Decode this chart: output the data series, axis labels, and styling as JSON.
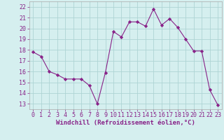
{
  "x": [
    0,
    1,
    2,
    3,
    4,
    5,
    6,
    7,
    8,
    9,
    10,
    11,
    12,
    13,
    14,
    15,
    16,
    17,
    18,
    19,
    20,
    21,
    22,
    23
  ],
  "y": [
    17.8,
    17.4,
    16.0,
    15.7,
    15.3,
    15.3,
    15.3,
    14.7,
    13.0,
    15.9,
    19.7,
    19.2,
    20.6,
    20.6,
    20.2,
    21.8,
    20.3,
    20.9,
    20.1,
    19.0,
    17.9,
    17.9,
    14.3,
    12.9
  ],
  "line_color": "#882288",
  "marker": "D",
  "marker_size": 2.2,
  "bg_color": "#d5efef",
  "grid_color": "#aed4d4",
  "xlabel": "Windchill (Refroidissement éolien,°C)",
  "xlabel_fontsize": 6.5,
  "tick_fontsize": 6.0,
  "ylim": [
    12.5,
    22.5
  ],
  "xlim": [
    -0.5,
    23.5
  ],
  "yticks": [
    13,
    14,
    15,
    16,
    17,
    18,
    19,
    20,
    21,
    22
  ],
  "xticks": [
    0,
    1,
    2,
    3,
    4,
    5,
    6,
    7,
    8,
    9,
    10,
    11,
    12,
    13,
    14,
    15,
    16,
    17,
    18,
    19,
    20,
    21,
    22,
    23
  ]
}
